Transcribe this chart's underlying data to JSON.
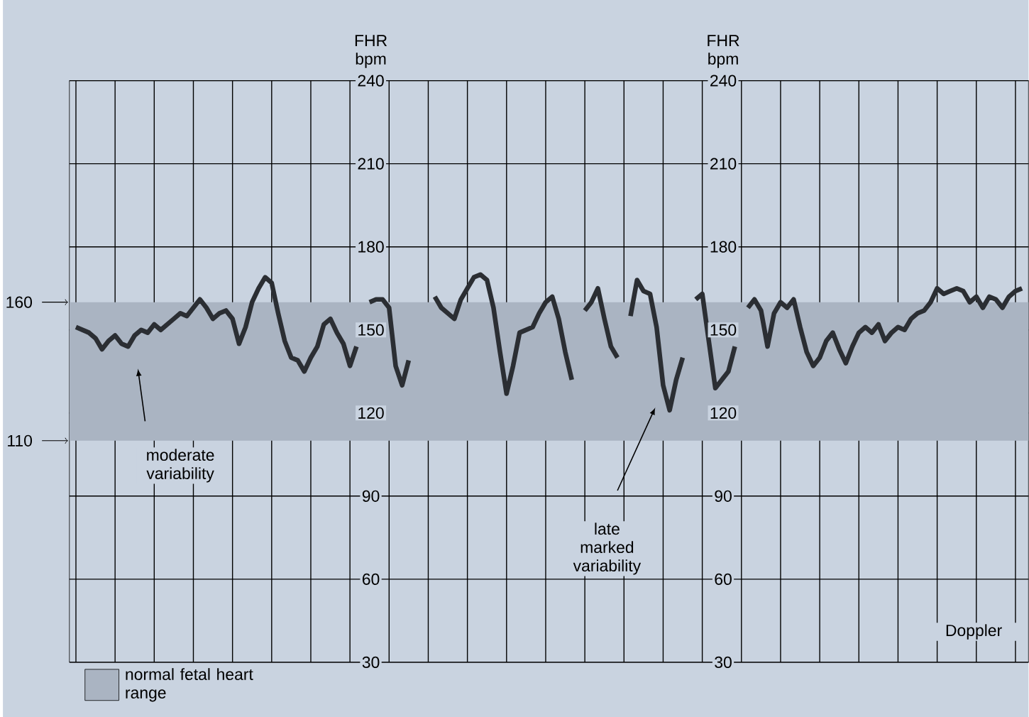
{
  "chart_data": {
    "type": "line",
    "color": "#2b2e33",
    "line_style": "solid",
    "grid": true,
    "categories": [
      null,
      null,
      null,
      null,
      null,
      null,
      null,
      null,
      null,
      null,
      null,
      null,
      null,
      null,
      null,
      null,
      null,
      null,
      null,
      null,
      null,
      null,
      null,
      null,
      null,
      null,
      null,
      null,
      null,
      null,
      null,
      null,
      null,
      null,
      null,
      null,
      null,
      null,
      null,
      null,
      null,
      null,
      null,
      null,
      null,
      null,
      null,
      null,
      null,
      null,
      null,
      null,
      null,
      null,
      null,
      null,
      null,
      null,
      null,
      null,
      null,
      null,
      null,
      null,
      null,
      null,
      null,
      null,
      null,
      null,
      null,
      null,
      null,
      null,
      null,
      null,
      null,
      null,
      null,
      null,
      null,
      null,
      null,
      null,
      null,
      null,
      null,
      null,
      null,
      null,
      null,
      null,
      null,
      null,
      null,
      null,
      null,
      null,
      null,
      null,
      null,
      null,
      null,
      null,
      null,
      null,
      null,
      null,
      null,
      null,
      null,
      null,
      null,
      null,
      null,
      null,
      null,
      null,
      null,
      null,
      null,
      null,
      null,
      null,
      null,
      null,
      null,
      null,
      null,
      null,
      null,
      null,
      null,
      null,
      null,
      null,
      null,
      null,
      null,
      null,
      null,
      null,
      null,
      null,
      null,
      null
    ],
    "marker": "none",
    "values": [
      151,
      150,
      149,
      147,
      143,
      146,
      148,
      145,
      144,
      148,
      150,
      149,
      152,
      150,
      152,
      154,
      156,
      155,
      158,
      161,
      158,
      154,
      156,
      157,
      154,
      145,
      151,
      160,
      165,
      169,
      167,
      156,
      146,
      140,
      139,
      135,
      140,
      144,
      152,
      154,
      149,
      145,
      137,
      144,
      null,
      160,
      161,
      161,
      158,
      137,
      130,
      139,
      null,
      null,
      null,
      162,
      158,
      156,
      154,
      161,
      165,
      169,
      170,
      168,
      158,
      142,
      127,
      137,
      149,
      150,
      151,
      156,
      160,
      162,
      154,
      142,
      132,
      null,
      157,
      160,
      165,
      154,
      144,
      140,
      null,
      155,
      168,
      164,
      163,
      151,
      130,
      121,
      132,
      140,
      null,
      161,
      163,
      146,
      129,
      132,
      135,
      144,
      null,
      158,
      161,
      157,
      144,
      156,
      160,
      158,
      161,
      151,
      142,
      137,
      140,
      146,
      149,
      143,
      138,
      144,
      149,
      151,
      149,
      152,
      146,
      149,
      151,
      150,
      154,
      156,
      157,
      160,
      165,
      163,
      164,
      165,
      164,
      160,
      162,
      158,
      162,
      161,
      158,
      162,
      164,
      165
    ],
    "ylim": [
      30,
      240
    ],
    "yticks": [
      {
        "value": 110,
        "label": "110"
      },
      {
        "value": 160,
        "label": "160"
      }
    ],
    "y2label": "FHR bpm",
    "y3label": "FHR bpm",
    "y2lim": [
      30,
      240
    ],
    "y2ticks": [
      30,
      60,
      90,
      120,
      150,
      180,
      210,
      240
    ],
    "y3lim": [
      30,
      240
    ],
    "y3ticks": [
      30,
      60,
      90,
      120,
      150,
      180,
      210,
      240
    ],
    "bands": [
      {
        "axis": "y",
        "from": 110,
        "to": 160,
        "label": "normal fetal heart range",
        "color": "#aab4c2"
      }
    ],
    "annotations": [
      "moderate variability",
      "late marked variability",
      "Doppler"
    ]
  }
}
